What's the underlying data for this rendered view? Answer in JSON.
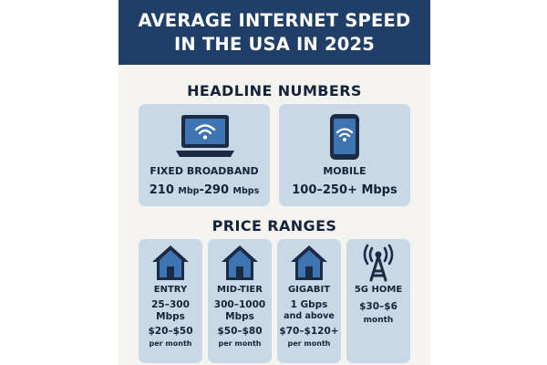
{
  "header": {
    "title_line1": "AVERAGE INTERNET SPEED",
    "title_line2": "IN THE USA IN 2025",
    "background_color": "#1f3e68"
  },
  "headline": {
    "title": "HEADLINE NUMBERS",
    "cards": [
      {
        "icon": "laptop-wifi-icon",
        "label": "FIXED BROADBAND",
        "speed_main_1": "210",
        "speed_unit_1": "Mbp",
        "speed_main_2": "-290",
        "speed_unit_2": "Mbps"
      },
      {
        "icon": "phone-wifi-icon",
        "label": "MOBILE",
        "speed": "100–250+ Mbps"
      }
    ]
  },
  "prices": {
    "title": "PRICE RANGES",
    "tiers": [
      {
        "icon": "house-icon",
        "label": "ENTRY",
        "speed_line1": "25–300",
        "speed_line2": "Mbps",
        "price": "$20–$50",
        "per": "per month"
      },
      {
        "icon": "house-icon",
        "label": "MID-TIER",
        "speed_line1": "300–1000",
        "speed_line2": "Mbps",
        "price": "$50–$80",
        "per": "per month"
      },
      {
        "icon": "house-icon",
        "label": "GIGABIT",
        "speed_line1": "1 Gbps",
        "speed_line2": "and above",
        "price": "$70–$120+",
        "per": "per month"
      },
      {
        "icon": "cell-tower-icon",
        "label": "5G HOME",
        "price": "$30–$6",
        "per": "month"
      }
    ]
  },
  "colors": {
    "card_bg": "#c9d8e6",
    "icon_fill": "#3f74b3",
    "icon_dark": "#1c2b44",
    "text_dark": "#15233a"
  }
}
